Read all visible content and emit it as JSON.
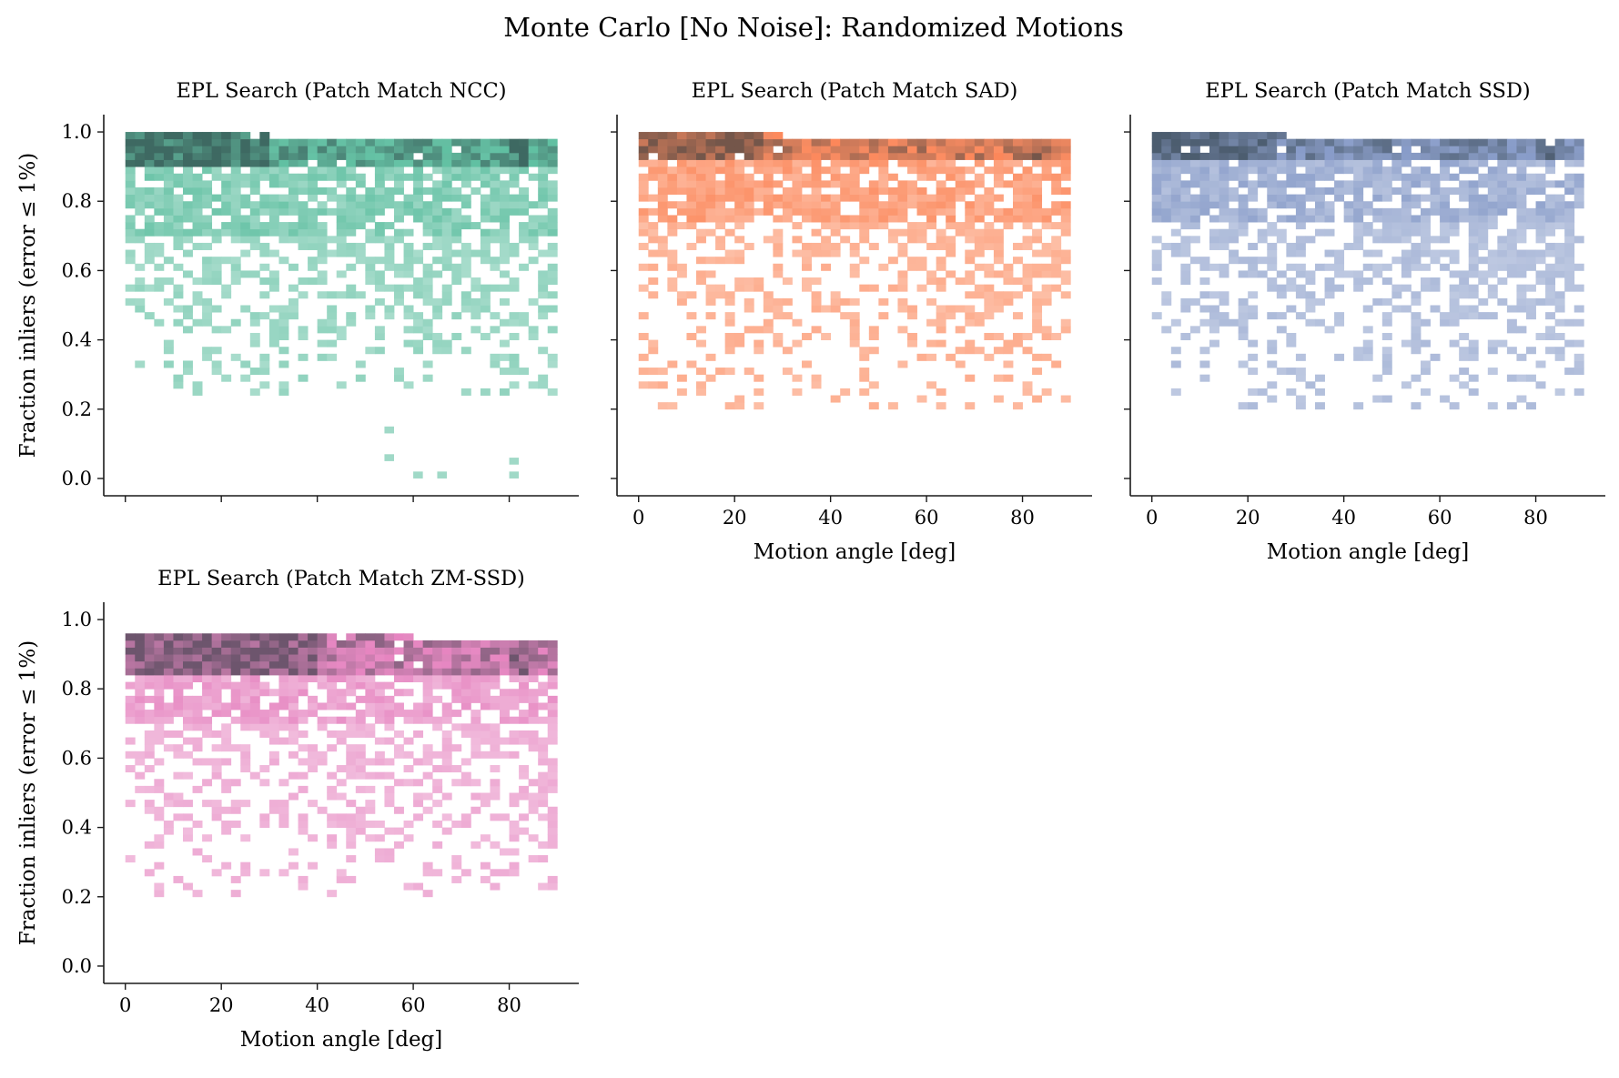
{
  "figure": {
    "title": "Monte Carlo [No Noise]: Randomized Motions"
  },
  "chart_data": [
    {
      "type": "heatmap",
      "title": "EPL Search (Patch Match NCC)",
      "xlabel": "",
      "ylabel": "Fraction inliers (error ≤ 1%)",
      "xlim": [
        -4.5,
        94.5
      ],
      "ylim": [
        -0.05,
        1.05
      ],
      "x_ticks": [
        0,
        20,
        40,
        60,
        80
      ],
      "x_tick_labels_visible": false,
      "y_ticks": [
        0.0,
        0.2,
        0.4,
        0.6,
        0.8,
        1.0
      ],
      "y_tick_labels": [
        "0.0",
        "0.2",
        "0.4",
        "0.6",
        "0.8",
        "1.0"
      ],
      "bins": {
        "x_start": 0,
        "x_end": 90,
        "x_count": 45,
        "y_start": 0,
        "y_end": 1,
        "y_count": 50
      },
      "color": "#66c2a5",
      "description_of_density": {
        "dense_band_y": [
          0.9,
          1.0
        ],
        "body_y_min": 0.7,
        "sparse_tail_y_min": 0.25,
        "isolated_low_points": [
          [
            55,
            0.14
          ],
          [
            55,
            0.06
          ],
          [
            61,
            0.01
          ],
          [
            66,
            0.01
          ],
          [
            81,
            0.05
          ],
          [
            81,
            0.01
          ]
        ],
        "peak_x": [
          0,
          30
        ],
        "secondary_peak_x": [
          80,
          84
        ]
      }
    },
    {
      "type": "heatmap",
      "title": "EPL Search (Patch Match SAD)",
      "xlabel": "Motion angle [deg]",
      "ylabel": "",
      "xlim": [
        -4.5,
        94.5
      ],
      "ylim": [
        -0.05,
        1.05
      ],
      "x_ticks": [
        0,
        20,
        40,
        60,
        80
      ],
      "x_tick_labels": [
        "0",
        "20",
        "40",
        "60",
        "80"
      ],
      "y_ticks": [
        0.0,
        0.2,
        0.4,
        0.6,
        0.8,
        1.0
      ],
      "y_tick_labels_visible": false,
      "bins": {
        "x_start": 0,
        "x_end": 90,
        "x_count": 45,
        "y_start": 0,
        "y_end": 1,
        "y_count": 50
      },
      "color": "#fc8d62",
      "description_of_density": {
        "dense_band_y": [
          0.92,
          1.0
        ],
        "body_y_min": 0.75,
        "sparse_tail_y_min": 0.2,
        "peak_x": [
          0,
          25
        ],
        "secondary_peak_x": [
          80,
          84
        ]
      }
    },
    {
      "type": "heatmap",
      "title": "EPL Search (Patch Match SSD)",
      "xlabel": "Motion angle [deg]",
      "ylabel": "",
      "xlim": [
        -4.5,
        94.5
      ],
      "ylim": [
        -0.05,
        1.05
      ],
      "x_ticks": [
        0,
        20,
        40,
        60,
        80
      ],
      "x_tick_labels": [
        "0",
        "20",
        "40",
        "60",
        "80"
      ],
      "y_ticks": [
        0.0,
        0.2,
        0.4,
        0.6,
        0.8,
        1.0
      ],
      "y_tick_labels_visible": false,
      "bins": {
        "x_start": 0,
        "x_end": 90,
        "x_count": 45,
        "y_start": 0,
        "y_end": 1,
        "y_count": 50
      },
      "color": "#8da0cb",
      "description_of_density": {
        "dense_band_y": [
          0.92,
          1.0
        ],
        "body_y_min": 0.75,
        "sparse_tail_y_min": 0.2,
        "peak_x": [
          0,
          25
        ],
        "secondary_peak_x": [
          80,
          84
        ]
      }
    },
    {
      "type": "heatmap",
      "title": "EPL Search (Patch Match ZM-SSD)",
      "xlabel": "Motion angle [deg]",
      "ylabel": "Fraction inliers (error ≤ 1%)",
      "xlim": [
        -4.5,
        94.5
      ],
      "ylim": [
        -0.05,
        1.05
      ],
      "x_ticks": [
        0,
        20,
        40,
        60,
        80
      ],
      "x_tick_labels": [
        "0",
        "20",
        "40",
        "60",
        "80"
      ],
      "y_ticks": [
        0.0,
        0.2,
        0.4,
        0.6,
        0.8,
        1.0
      ],
      "y_tick_labels": [
        "0.0",
        "0.2",
        "0.4",
        "0.6",
        "0.8",
        "1.0"
      ],
      "bins": {
        "x_start": 0,
        "x_end": 90,
        "x_count": 45,
        "y_start": 0,
        "y_end": 1,
        "y_count": 50
      },
      "color": "#e78ac3",
      "description_of_density": {
        "dense_band_y": [
          0.85,
          0.97
        ],
        "body_y_min": 0.7,
        "sparse_tail_y_min": 0.2,
        "peak_x": [
          0,
          40
        ],
        "secondary_peak_x": [
          80,
          84
        ]
      }
    }
  ]
}
